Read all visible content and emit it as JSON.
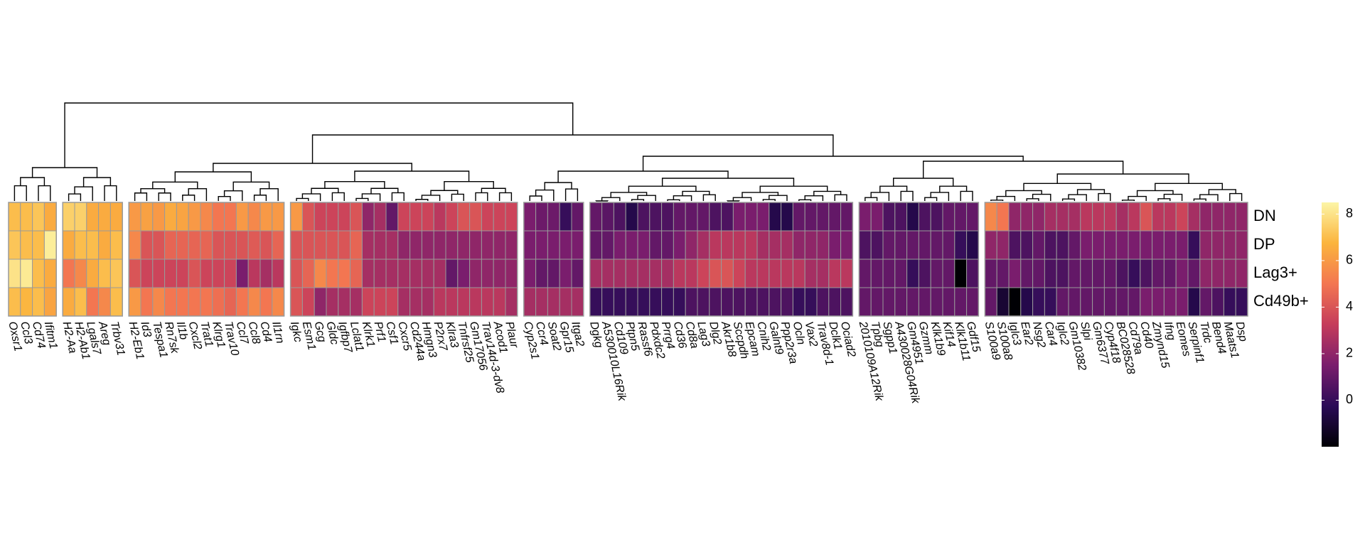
{
  "chart_data": {
    "type": "heatmap",
    "rows": [
      "DN",
      "DP",
      "Lag3+",
      "Cd49b+"
    ],
    "column_groups": [
      [
        "Oxsr1",
        "Ccl3",
        "Cd74",
        "Ifitm1"
      ],
      [
        "H2-Aa",
        "H2-Ab1",
        "Lgals7",
        "Areg",
        "Trbv31"
      ],
      [
        "H2-Eb1",
        "Id3",
        "Tespa1",
        "Rn7sk",
        "Il1b",
        "Cxcl2",
        "Trat1",
        "Klrg1",
        "Trav10",
        "Ccl7",
        "Ccl8",
        "Cd4",
        "Il1rn"
      ],
      [
        "Igkc",
        "Esm1",
        "Gcg",
        "Gldc",
        "Igfbp7",
        "Lclat1",
        "Klrk1",
        "Prf1",
        "Csf1",
        "Cxcr5",
        "Cd244a",
        "Hmgn3",
        "P2rx7",
        "Klra3",
        "Tnfrsf25",
        "Gm17056",
        "Trav14d-3-dv8",
        "Acod1",
        "Plaur"
      ],
      [
        "Cyp2s1",
        "Ccr4",
        "Soat2",
        "Gpr15",
        "Itga2"
      ],
      [
        "Dgkg",
        "A530010L16Rik",
        "Cd109",
        "Ptpn5",
        "Rassf6",
        "Pdxdc2",
        "Prrg4",
        "Cd36",
        "Cd8a",
        "Lag3",
        "Dlg2",
        "Akr1b8",
        "Sccpdh",
        "Epcam",
        "Cnih2",
        "Galnt9",
        "Ppp2r3a",
        "Ocln",
        "Vax2",
        "Trav8d-1",
        "Dclk1",
        "Ociad2"
      ],
      [
        "2010109A12Rik",
        "Tpbg",
        "Sgpp1",
        "A430028G04Rik",
        "Gm4951",
        "Gzmm",
        "Klk1b9",
        "Kif14",
        "Klk1b11",
        "Gdf15"
      ],
      [
        "S100a9",
        "S100a8",
        "Iglc3",
        "Ear2",
        "Nsg2",
        "Car4",
        "Iglc2",
        "Gm10382",
        "Slpi",
        "Gm6377",
        "Cyp4f18",
        "BC028528",
        "Cd79a",
        "Cd40",
        "Zmynd15",
        "Ifng",
        "Eomes",
        "Serpinf1",
        "Trdc",
        "Bend4",
        "Maats1",
        "Dsp"
      ]
    ],
    "values": [
      [
        7,
        7,
        7.2,
        6.5,
        7.5,
        7.5,
        6.5,
        6.5,
        6.5,
        6,
        6.2,
        6,
        6.5,
        6.3,
        6,
        5.5,
        5,
        5,
        6,
        5.5,
        6,
        6,
        6,
        4,
        3.5,
        3.5,
        3.5,
        4,
        2,
        2.5,
        1,
        3.5,
        3.5,
        3.5,
        3,
        3.5,
        4,
        4,
        3.5,
        3.5,
        3.5,
        1.5,
        1.2,
        1.2,
        0,
        1,
        1,
        0.8,
        0.5,
        -0.5,
        0.5,
        0.5,
        0.5,
        1,
        1,
        1,
        0.5,
        0.5,
        1.5,
        1.5,
        1.5,
        -0.5,
        -0.5,
        1,
        1,
        1,
        1,
        1,
        1.5,
        1.5,
        0.5,
        0.5,
        -0.5,
        0.5,
        0.5,
        1,
        1,
        1,
        5.5,
        5,
        2,
        2,
        2,
        2.5,
        2.5,
        2.5,
        3,
        3,
        3,
        2.5,
        3,
        4,
        3,
        3,
        3.5,
        2.5,
        2,
        2,
        2,
        2
      ],
      [
        7.2,
        7,
        7,
        8.3,
        6.5,
        7,
        7,
        6.5,
        7,
        5.5,
        4,
        4,
        4.5,
        4.5,
        4.5,
        4.5,
        4,
        4,
        4,
        4.2,
        4,
        4.5,
        4,
        4,
        4,
        4,
        4,
        4.5,
        2.5,
        2.5,
        2.5,
        2,
        2,
        2,
        2,
        2,
        2,
        2,
        2,
        2,
        2,
        1.5,
        1.5,
        1.5,
        1.5,
        1.5,
        1,
        1,
        1.5,
        1.5,
        1.5,
        1,
        1,
        1.5,
        2,
        2.5,
        3,
        3,
        3,
        3,
        2.5,
        2.5,
        2.5,
        2,
        2,
        2,
        1.5,
        1.5,
        0.5,
        0.5,
        1,
        1,
        1,
        1,
        1,
        1,
        0,
        -0.5,
        2,
        2,
        0.5,
        0.5,
        1,
        0.5,
        0.5,
        1,
        1.5,
        1.5,
        1.5,
        1.5,
        1.5,
        1.5,
        1.5,
        1.5,
        1.5,
        0,
        2,
        2,
        2,
        2
      ],
      [
        8,
        8.2,
        7,
        6.5,
        5,
        5.5,
        6.5,
        7,
        7.2,
        4,
        3.5,
        3.5,
        3.5,
        3.5,
        4,
        3.5,
        3.5,
        3.5,
        1.5,
        3,
        2.5,
        3,
        4,
        4.5,
        5.5,
        5,
        5,
        4.5,
        2.5,
        2.5,
        2.5,
        2.5,
        2.5,
        2.5,
        2.5,
        1,
        1.5,
        2,
        2,
        2,
        2,
        1.5,
        1,
        1,
        1.5,
        1,
        2.5,
        2.5,
        2.5,
        2.5,
        2.5,
        2.5,
        2.5,
        3,
        3,
        3.5,
        4,
        4,
        3.5,
        3,
        3,
        3,
        3,
        3,
        2.5,
        2.5,
        3,
        3,
        1,
        1,
        1,
        1,
        0,
        0.5,
        1,
        1,
        -2,
        0.5,
        1,
        1,
        1.5,
        1,
        1,
        0.5,
        0.5,
        1,
        1,
        1,
        1,
        0.5,
        0,
        0.5,
        1,
        1,
        1.5,
        1,
        2,
        2,
        2,
        2
      ],
      [
        7,
        6.8,
        7,
        6.3,
        6.5,
        7,
        5,
        5.5,
        7,
        6,
        5,
        5.5,
        5,
        5,
        5,
        5,
        4.8,
        4.5,
        5,
        5.5,
        5,
        5.5,
        4,
        3.5,
        2,
        2.5,
        2.5,
        2.5,
        3.5,
        3.5,
        3.5,
        2.5,
        2.5,
        2.5,
        3,
        3,
        3,
        3,
        3,
        3,
        2.5,
        2.5,
        2.5,
        2.5,
        2.5,
        2.5,
        0,
        0,
        0,
        0,
        0,
        0,
        0,
        0,
        0.5,
        0.5,
        0.5,
        0.5,
        0.5,
        0.5,
        0.5,
        0.5,
        0.5,
        0,
        0,
        0.5,
        0.5,
        0.5,
        1,
        1,
        1,
        1,
        1,
        1,
        1,
        1,
        1,
        1,
        1,
        -1,
        -2,
        -0.5,
        0,
        0,
        1,
        1,
        1,
        1,
        1,
        1,
        1,
        1.5,
        1.5,
        1.5,
        1.5,
        -0.5,
        1,
        0.5,
        0,
        0
      ]
    ],
    "zlim": [
      -2,
      8.5
    ],
    "colorbar_ticks": [
      0,
      2,
      4,
      6,
      8
    ],
    "colorscale": [
      "#000004",
      "#2b0b57",
      "#7a1d6d",
      "#c53c5b",
      "#f37651",
      "#fbb43d",
      "#fcf5a6"
    ],
    "cell_border": "#9a9a9a"
  }
}
